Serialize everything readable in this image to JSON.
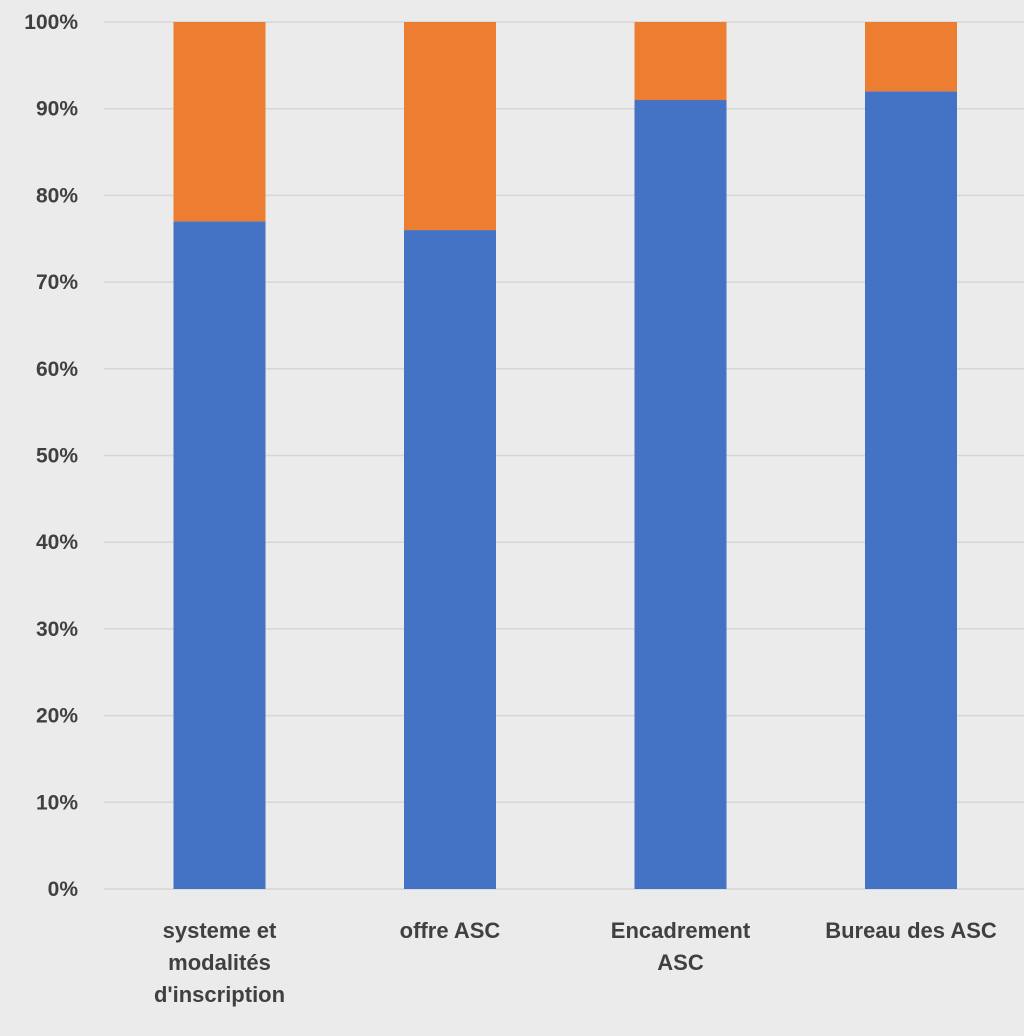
{
  "chart_data": {
    "type": "bar",
    "stacked": true,
    "categories": [
      [
        "systeme et",
        "modalités",
        "d'inscription"
      ],
      [
        "offre ASC"
      ],
      [
        "Encadrement",
        "ASC"
      ],
      [
        "Bureau des ASC"
      ]
    ],
    "series": [
      {
        "values": [
          77,
          76,
          91,
          92
        ],
        "color": "#4472c4"
      },
      {
        "values": [
          23,
          24,
          9,
          8
        ],
        "color": "#ed7d31"
      }
    ],
    "yticks": [
      "0%",
      "10%",
      "20%",
      "30%",
      "40%",
      "50%",
      "60%",
      "70%",
      "80%",
      "90%",
      "100%"
    ],
    "ylim": [
      0,
      100
    ],
    "grid": true,
    "legend": "none"
  }
}
